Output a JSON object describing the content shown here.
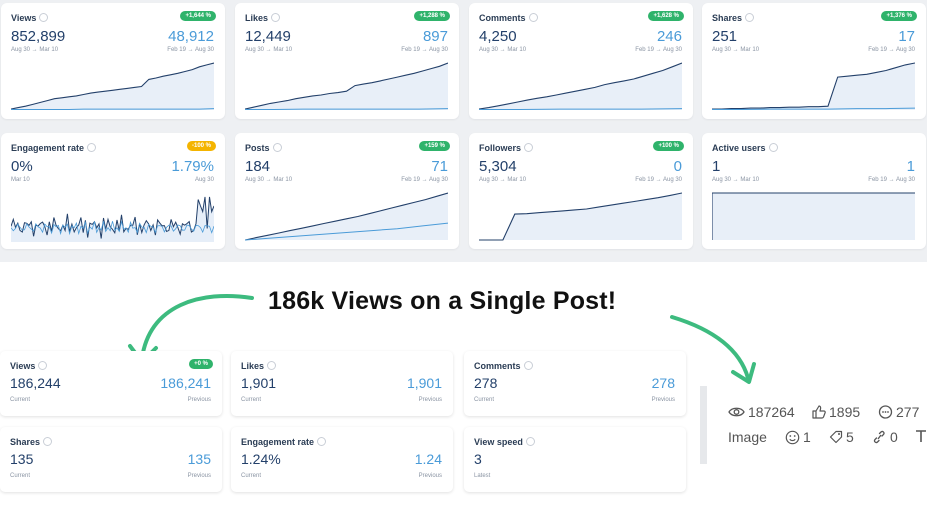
{
  "top_cards": [
    {
      "title": "Views",
      "badge": "+1,644 %",
      "badge_color": "#2fb36b",
      "current": "852,899",
      "previous": "48,912",
      "current_range": "Aug 30 → Mar 10",
      "previous_range": "Feb 19 → Aug 30"
    },
    {
      "title": "Likes",
      "badge": "+1,288 %",
      "badge_color": "#2fb36b",
      "current": "12,449",
      "previous": "897",
      "current_range": "Aug 30 → Mar 10",
      "previous_range": "Feb 19 → Aug 30"
    },
    {
      "title": "Comments",
      "badge": "+1,628 %",
      "badge_color": "#2fb36b",
      "current": "4,250",
      "previous": "246",
      "current_range": "Aug 30 → Mar 10",
      "previous_range": "Feb 19 → Aug 30"
    },
    {
      "title": "Shares",
      "badge": "+1,376 %",
      "badge_color": "#2fb36b",
      "current": "251",
      "previous": "17",
      "current_range": "Aug 30 → Mar 10",
      "previous_range": "Feb 19 → Aug 30"
    },
    {
      "title": "Engagement rate",
      "badge": "-100 %",
      "badge_color": "#f4b400",
      "current": "0%",
      "previous": "1.79%",
      "current_range": "Mar 10",
      "previous_range": "Aug 30"
    },
    {
      "title": "Posts",
      "badge": "+159 %",
      "badge_color": "#2fb36b",
      "current": "184",
      "previous": "71",
      "current_range": "Aug 30 → Mar 10",
      "previous_range": "Feb 19 → Aug 30"
    },
    {
      "title": "Followers",
      "badge": "+100 %",
      "badge_color": "#2fb36b",
      "current": "5,304",
      "previous": "0",
      "current_range": "Aug 30 → Mar 10",
      "previous_range": "Feb 19 → Aug 30"
    },
    {
      "title": "Active users",
      "badge": "",
      "badge_color": "",
      "current": "1",
      "previous": "1",
      "current_range": "Aug 30 → Mar 10",
      "previous_range": "Feb 19 → Aug 30"
    }
  ],
  "headline": "186k Views on a Single Post!",
  "post_cards": [
    {
      "title": "Views",
      "badge": "+0 %",
      "current": "186,244",
      "previous": "186,241",
      "current_label": "Current",
      "previous_label": "Previous"
    },
    {
      "title": "Likes",
      "badge": "",
      "current": "1,901",
      "previous": "1,901",
      "current_label": "Current",
      "previous_label": "Previous"
    },
    {
      "title": "Comments",
      "badge": "",
      "current": "278",
      "previous": "278",
      "current_label": "Current",
      "previous_label": "Previous"
    },
    {
      "title": "Shares",
      "badge": "",
      "current": "135",
      "previous": "135",
      "current_label": "Current",
      "previous_label": "Previous"
    },
    {
      "title": "Engagement rate",
      "badge": "",
      "current": "1.24%",
      "previous": "1.24",
      "current_label": "Current",
      "previous_label": "Previous"
    },
    {
      "title": "View speed",
      "badge": "",
      "current": "3",
      "previous": "",
      "current_label": "Latest",
      "previous_label": ""
    }
  ],
  "post_stats": {
    "views": "187264",
    "likes": "1895",
    "comments": "277",
    "type": "Image",
    "reactions": "1",
    "saves": "5",
    "links": "0"
  },
  "colors": {
    "accent": "#4a9bd8",
    "dark_line": "#23406a",
    "badge_green": "#2fb36b",
    "badge_orange": "#f4b400",
    "arrow_green": "#3dbb7f"
  }
}
